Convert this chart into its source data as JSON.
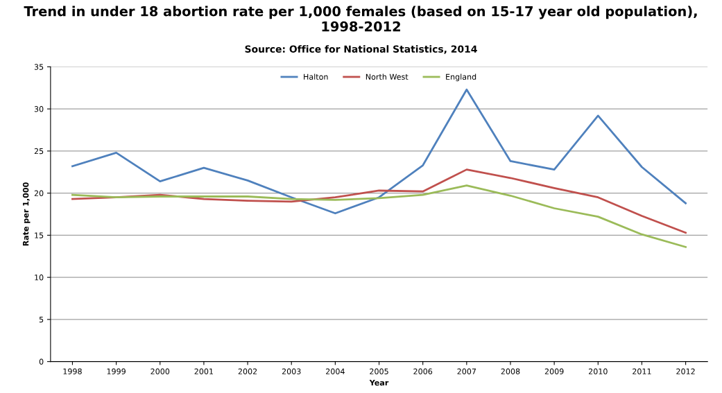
{
  "chart_data": {
    "type": "line",
    "title": "Trend in under 18 abortion rate per 1,000 females (based on 15-17 year old population), 1998-2012",
    "annotations": [
      "Source: Office for National Statistics, 2014"
    ],
    "xlabel": "Year",
    "ylabel": "Rate per 1,000",
    "categories": [
      "1998",
      "1999",
      "2000",
      "2001",
      "2002",
      "2003",
      "2004",
      "2005",
      "2006",
      "2007",
      "2008",
      "2009",
      "2010",
      "2011",
      "2012"
    ],
    "series": [
      {
        "name": "Halton",
        "color": "#4f81bd",
        "values": [
          23.2,
          24.8,
          21.4,
          23.0,
          21.5,
          19.5,
          17.6,
          19.5,
          23.3,
          32.3,
          23.8,
          22.8,
          29.2,
          23.1,
          18.8
        ]
      },
      {
        "name": "North West",
        "color": "#c0504d",
        "values": [
          19.3,
          19.5,
          19.8,
          19.3,
          19.1,
          19.0,
          19.5,
          20.3,
          20.2,
          22.8,
          21.8,
          20.6,
          19.5,
          17.3,
          15.3
        ]
      },
      {
        "name": "England",
        "color": "#9bbb59",
        "values": [
          19.8,
          19.5,
          19.6,
          19.6,
          19.6,
          19.3,
          19.2,
          19.4,
          19.8,
          20.9,
          19.7,
          18.2,
          17.2,
          15.1,
          13.6
        ]
      }
    ],
    "ylim": [
      0,
      35
    ],
    "yticks": [
      0,
      5,
      10,
      15,
      20,
      25,
      30,
      35
    ],
    "grid": "y",
    "legend": "top",
    "marker": "none",
    "line_style": "solid"
  }
}
